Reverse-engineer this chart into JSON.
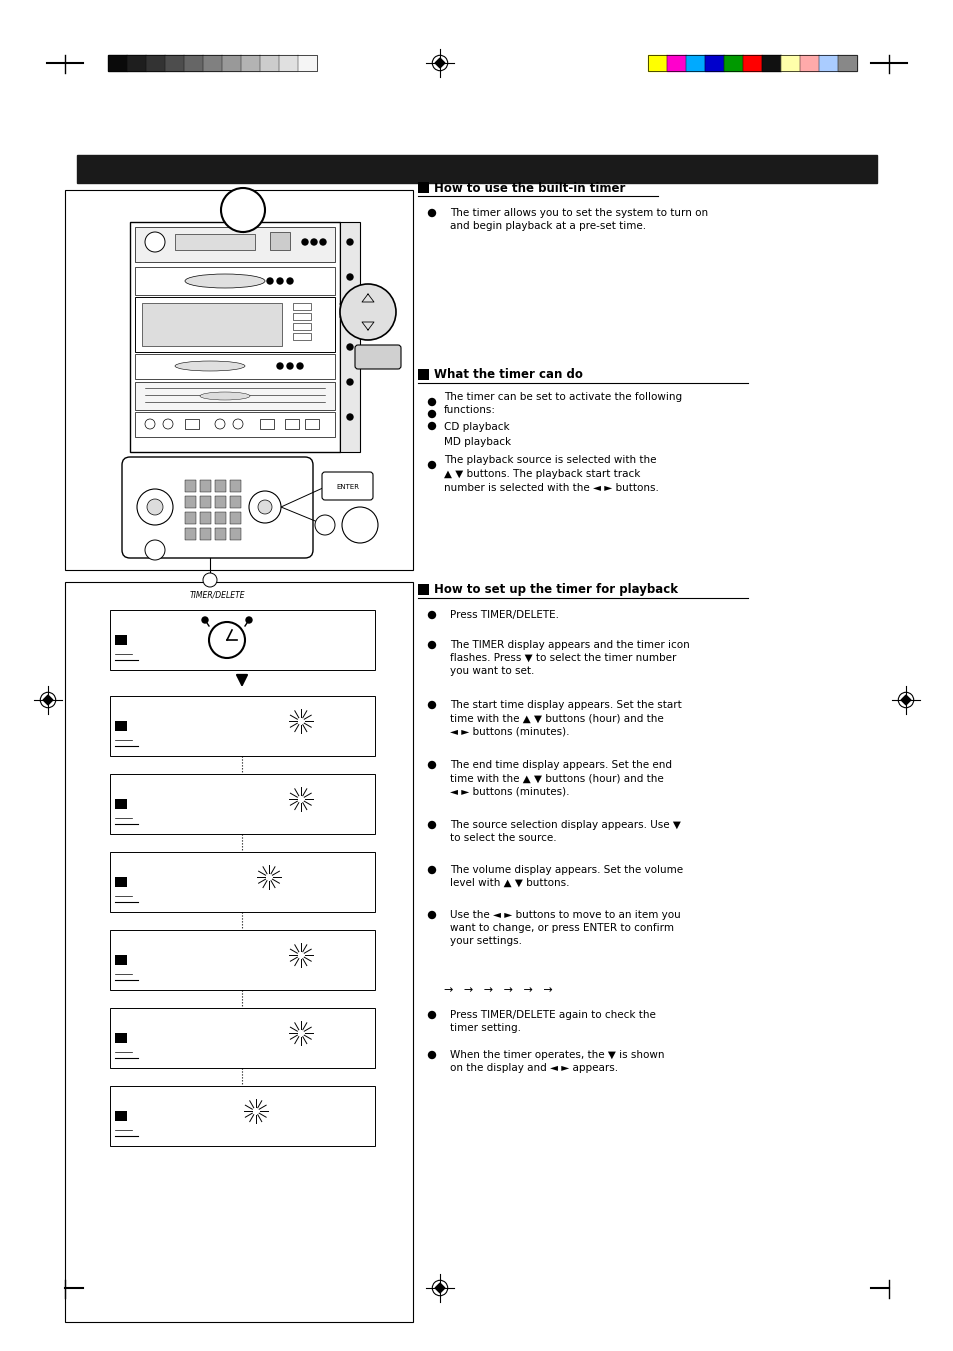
{
  "bg_color": "#ffffff",
  "header_bar_color": "#1a1a1a",
  "grayscale_bars": [
    "#0a0a0a",
    "#1e1e1e",
    "#333333",
    "#4d4d4d",
    "#666666",
    "#808080",
    "#999999",
    "#b3b3b3",
    "#cccccc",
    "#e0e0e0",
    "#f5f5f5"
  ],
  "color_bars": [
    "#ffff00",
    "#ff00cc",
    "#00aaff",
    "#0000cc",
    "#009900",
    "#ff0000",
    "#111111",
    "#ffffaa",
    "#ffaaaa",
    "#aaccff",
    "#888888"
  ],
  "section1_title": "How to use the built-in timer",
  "section1_body": "The timer allows you to set the system to turn on\nand begin playback at a pre-set time.",
  "section2_title": "What the timer can do",
  "section2_b1": "The timer can be set to activate the following\nfunctions:",
  "section2_b2": "CD playback",
  "section2_b3": "MD playback",
  "section2_b4": "The playback source is selected with the\n▲ ▼ buttons. The playback start track\nnumber is selected with the ◄ ► buttons.",
  "section3_title": "How to set up the timer for playback",
  "step1": "Press TIMER/DELETE.",
  "step2": "The TIMER display appears and the timer icon\nflashes. Press ▼ to select the timer number\nyou want to set.",
  "step3": "The start time display appears. Set the start\ntime with the ▲ ▼ buttons (hour) and the\n◄ ► buttons (minutes).",
  "step4": "The end time display appears. Set the end\ntime with the ▲ ▼ buttons (hour) and the\n◄ ► buttons (minutes).",
  "step5": "The source selection display appears. Use ▼\nto select the source.",
  "step6": "The volume display appears. Set the volume\nlevel with ▲ ▼ buttons.",
  "step7": "Use the ◄ ► buttons to move to an item you\nwant to change, or press ENTER to confirm\nyour settings.",
  "arrow_seq": "→   →   →   →   →   →",
  "step8": "Press TIMER/DELETE again to check the\ntimer setting.",
  "step9": "When the timer operates, the ▼ is shown\non the display and ◄ ► appears."
}
